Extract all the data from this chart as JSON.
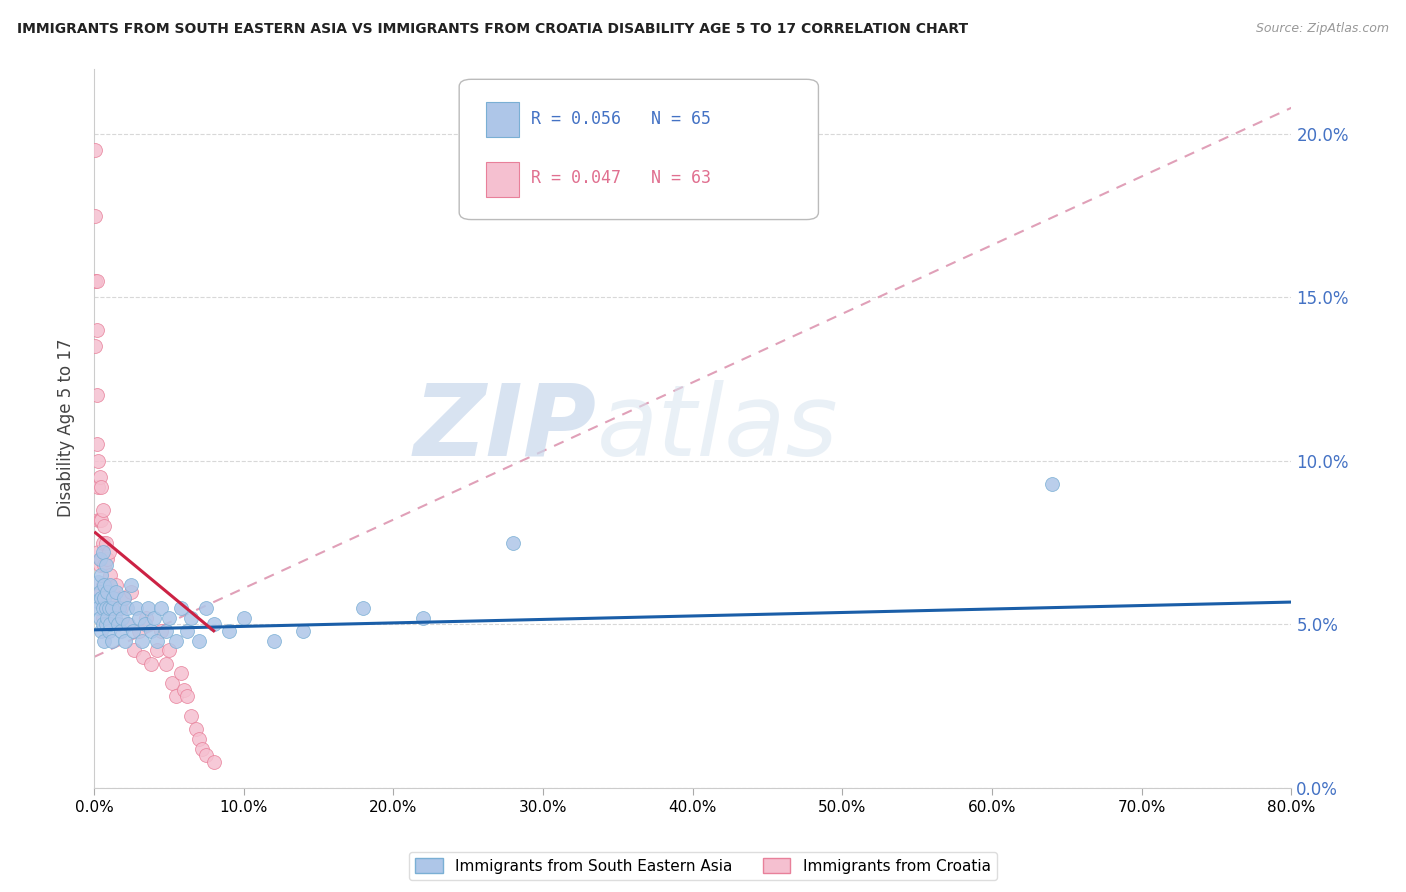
{
  "title": "IMMIGRANTS FROM SOUTH EASTERN ASIA VS IMMIGRANTS FROM CROATIA DISABILITY AGE 5 TO 17 CORRELATION CHART",
  "source": "Source: ZipAtlas.com",
  "ylabel": "Disability Age 5 to 17",
  "xlim": [
    0.0,
    0.8
  ],
  "ylim": [
    0.0,
    0.22
  ],
  "yticks": [
    0.0,
    0.05,
    0.1,
    0.15,
    0.2
  ],
  "background_color": "#ffffff",
  "watermark_zip": "ZIP",
  "watermark_atlas": "atlas",
  "legend_r1": "R = 0.056",
  "legend_n1": "N = 65",
  "legend_r2": "R = 0.047",
  "legend_n2": "N = 63",
  "series1_color": "#aec6e8",
  "series1_edge": "#7aafd4",
  "series2_color": "#f5c0d0",
  "series2_edge": "#e8809a",
  "line1_color": "#1a5ea8",
  "line2_color": "#cc2244",
  "line2_dashed_color": "#e0a0b8",
  "series1_label": "Immigrants from South Eastern Asia",
  "series2_label": "Immigrants from Croatia",
  "sea_x": [
    0.002,
    0.003,
    0.003,
    0.004,
    0.004,
    0.004,
    0.005,
    0.005,
    0.005,
    0.006,
    0.006,
    0.006,
    0.007,
    0.007,
    0.007,
    0.008,
    0.008,
    0.008,
    0.009,
    0.009,
    0.01,
    0.01,
    0.011,
    0.011,
    0.012,
    0.012,
    0.013,
    0.014,
    0.015,
    0.016,
    0.017,
    0.018,
    0.019,
    0.02,
    0.021,
    0.022,
    0.023,
    0.025,
    0.026,
    0.028,
    0.03,
    0.032,
    0.034,
    0.036,
    0.038,
    0.04,
    0.042,
    0.045,
    0.048,
    0.05,
    0.055,
    0.058,
    0.062,
    0.065,
    0.07,
    0.075,
    0.08,
    0.09,
    0.1,
    0.12,
    0.14,
    0.18,
    0.22,
    0.28,
    0.64
  ],
  "sea_y": [
    0.057,
    0.063,
    0.055,
    0.07,
    0.052,
    0.06,
    0.065,
    0.048,
    0.058,
    0.072,
    0.05,
    0.055,
    0.062,
    0.045,
    0.058,
    0.068,
    0.05,
    0.055,
    0.06,
    0.052,
    0.055,
    0.048,
    0.062,
    0.05,
    0.055,
    0.045,
    0.058,
    0.052,
    0.06,
    0.05,
    0.055,
    0.048,
    0.052,
    0.058,
    0.045,
    0.055,
    0.05,
    0.062,
    0.048,
    0.055,
    0.052,
    0.045,
    0.05,
    0.055,
    0.048,
    0.052,
    0.045,
    0.055,
    0.048,
    0.052,
    0.045,
    0.055,
    0.048,
    0.052,
    0.045,
    0.055,
    0.05,
    0.048,
    0.052,
    0.045,
    0.048,
    0.055,
    0.052,
    0.075,
    0.093
  ],
  "cro_x": [
    0.001,
    0.001,
    0.001,
    0.001,
    0.002,
    0.002,
    0.002,
    0.002,
    0.003,
    0.003,
    0.003,
    0.003,
    0.004,
    0.004,
    0.004,
    0.005,
    0.005,
    0.005,
    0.005,
    0.006,
    0.006,
    0.006,
    0.006,
    0.007,
    0.007,
    0.007,
    0.008,
    0.008,
    0.009,
    0.009,
    0.01,
    0.01,
    0.011,
    0.011,
    0.012,
    0.013,
    0.014,
    0.015,
    0.016,
    0.018,
    0.02,
    0.022,
    0.025,
    0.027,
    0.03,
    0.033,
    0.035,
    0.038,
    0.042,
    0.045,
    0.048,
    0.05,
    0.052,
    0.055,
    0.058,
    0.06,
    0.062,
    0.065,
    0.068,
    0.07,
    0.072,
    0.075,
    0.08
  ],
  "cro_y": [
    0.195,
    0.175,
    0.155,
    0.135,
    0.155,
    0.14,
    0.12,
    0.105,
    0.1,
    0.092,
    0.082,
    0.072,
    0.095,
    0.082,
    0.068,
    0.092,
    0.082,
    0.07,
    0.06,
    0.085,
    0.075,
    0.062,
    0.052,
    0.08,
    0.068,
    0.058,
    0.075,
    0.062,
    0.07,
    0.058,
    0.072,
    0.06,
    0.065,
    0.055,
    0.06,
    0.058,
    0.055,
    0.062,
    0.05,
    0.055,
    0.058,
    0.05,
    0.06,
    0.042,
    0.048,
    0.04,
    0.052,
    0.038,
    0.042,
    0.048,
    0.038,
    0.042,
    0.032,
    0.028,
    0.035,
    0.03,
    0.028,
    0.022,
    0.018,
    0.015,
    0.012,
    0.01,
    0.008
  ],
  "line1_x_start": 0.0,
  "line1_x_end": 0.8,
  "line1_y_start": 0.0483,
  "line1_y_end": 0.0568,
  "line2_solid_x_start": 0.001,
  "line2_solid_x_end": 0.08,
  "line2_solid_y_start": 0.078,
  "line2_solid_y_end": 0.048,
  "line2_dash_x_start": 0.0,
  "line2_dash_x_end": 0.8,
  "line2_dash_y_start": 0.04,
  "line2_dash_y_end": 0.208
}
